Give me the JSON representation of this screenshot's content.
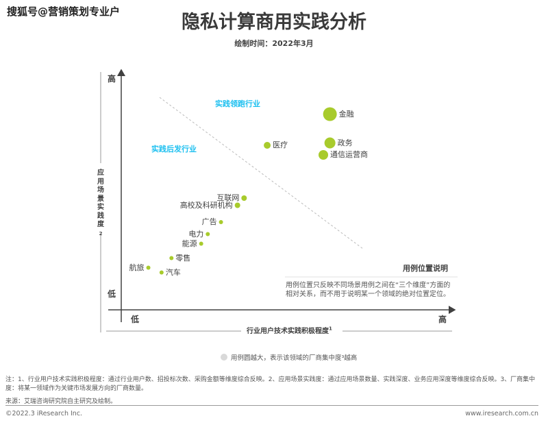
{
  "watermark": "搜狐号@营销策划专业户",
  "title": "隐私计算商用实践分析",
  "subtitle": "绘制时间：2022年3月",
  "chart_data": {
    "type": "scatter",
    "variant": "bubble",
    "title": "隐私计算商用实践分析",
    "xlabel": "行业用户技术实践积极程度",
    "xlabel_sup": "1",
    "ylabel": "应用场景实践度",
    "ylabel_sup": "2",
    "x_ticks": {
      "low": "低",
      "high": "高"
    },
    "y_ticks": {
      "low": "低",
      "high": "高"
    },
    "xlim": [
      0,
      10
    ],
    "ylim": [
      0,
      10
    ],
    "grid": false,
    "divider": "dashed diagonal line separating zones",
    "zones": [
      {
        "label": "实践领跑行业",
        "position": "upper-right"
      },
      {
        "label": "实践后发行业",
        "position": "upper-left"
      }
    ],
    "points": [
      {
        "name": "金融",
        "x": 6.3,
        "y": 8.1,
        "size": 10,
        "label_side": "right"
      },
      {
        "name": "政务",
        "x": 6.3,
        "y": 6.9,
        "size": 8,
        "label_side": "right"
      },
      {
        "name": "通信运营商",
        "x": 6.1,
        "y": 6.4,
        "size": 7,
        "label_side": "right"
      },
      {
        "name": "医疗",
        "x": 4.4,
        "y": 6.8,
        "size": 5,
        "label_side": "right"
      },
      {
        "name": "互联网",
        "x": 3.7,
        "y": 4.6,
        "size": 4,
        "label_side": "left"
      },
      {
        "name": "高校及科研机构",
        "x": 3.5,
        "y": 4.3,
        "size": 4,
        "label_side": "left"
      },
      {
        "name": "广告",
        "x": 3.0,
        "y": 3.6,
        "size": 3,
        "label_side": "left"
      },
      {
        "name": "电力",
        "x": 2.6,
        "y": 3.1,
        "size": 3,
        "label_side": "left"
      },
      {
        "name": "能源",
        "x": 2.4,
        "y": 2.7,
        "size": 3,
        "label_side": "left"
      },
      {
        "name": "零售",
        "x": 1.5,
        "y": 2.1,
        "size": 3,
        "label_side": "right"
      },
      {
        "name": "航旅",
        "x": 0.8,
        "y": 1.7,
        "size": 3,
        "label_side": "left"
      },
      {
        "name": "汽车",
        "x": 1.2,
        "y": 1.5,
        "size": 3,
        "label_side": "right"
      }
    ],
    "bubble_color": "#a8cb2c",
    "zone_color": "#1ec0f0",
    "size_legend": "用例圆越大，表示该领域的厂商集中度³越高"
  },
  "legend_box": {
    "title": "用例位置说明",
    "text": "用例位置只反映不同场景用例之间在“三个维度”方面的相对关系，而不用于说明某一个领域的绝对位置定位。"
  },
  "notes": "注：1、行业用户技术实践积极程度：通过行业用户数、招投标次数、采购金额等维度综合反映。2、应用场景实践度：通过应用场景数量、实践深度、业务应用深度等维度综合反映。3、厂商集中度：将某一领域作为关键市场发展方向的厂商数量。",
  "source": "来源：艾瑞咨询研究院自主研究及绘制。",
  "footer": {
    "copyright": "©2022.3 iResearch Inc.",
    "website": "www.iresearch.com.cn"
  }
}
